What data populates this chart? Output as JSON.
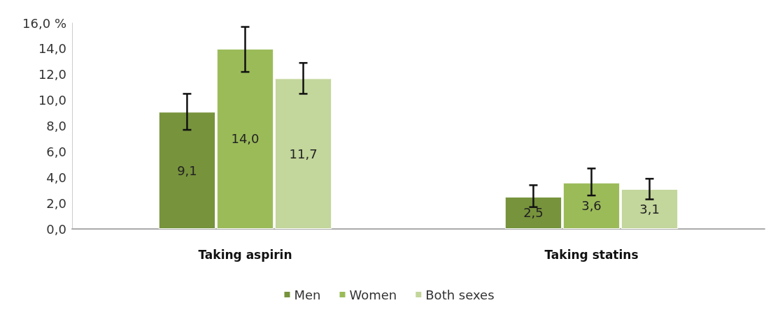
{
  "chart_data": {
    "type": "bar",
    "categories": [
      "Taking aspirin",
      "Taking statins"
    ],
    "series": [
      {
        "name": "Men",
        "color": "#77933c",
        "values": [
          9.1,
          2.5
        ],
        "value_labels": [
          "9,1",
          "2,5"
        ],
        "errors": [
          [
            7.7,
            10.5
          ],
          [
            1.7,
            3.4
          ]
        ]
      },
      {
        "name": "Women",
        "color": "#9bbb59",
        "values": [
          14.0,
          3.6
        ],
        "value_labels": [
          "14,0",
          "3,6"
        ],
        "errors": [
          [
            12.2,
            15.7
          ],
          [
            2.6,
            4.7
          ]
        ]
      },
      {
        "name": "Both sexes",
        "color": "#c3d69b",
        "values": [
          11.7,
          3.1
        ],
        "value_labels": [
          "11,7",
          "3,1"
        ],
        "errors": [
          [
            10.5,
            12.9
          ],
          [
            2.3,
            3.9
          ]
        ]
      }
    ],
    "ylim": [
      0,
      16
    ],
    "yticks": [
      {
        "value": 0,
        "label": "0,0"
      },
      {
        "value": 2,
        "label": "2,0"
      },
      {
        "value": 4,
        "label": "4,0"
      },
      {
        "value": 6,
        "label": "6,0"
      },
      {
        "value": 8,
        "label": "8,0"
      },
      {
        "value": 10,
        "label": "10,0"
      },
      {
        "value": 12,
        "label": "12,0"
      },
      {
        "value": 14,
        "label": "14,0"
      },
      {
        "value": 16,
        "label": "16,0 %"
      }
    ],
    "grid": false,
    "legend": "bottom"
  }
}
